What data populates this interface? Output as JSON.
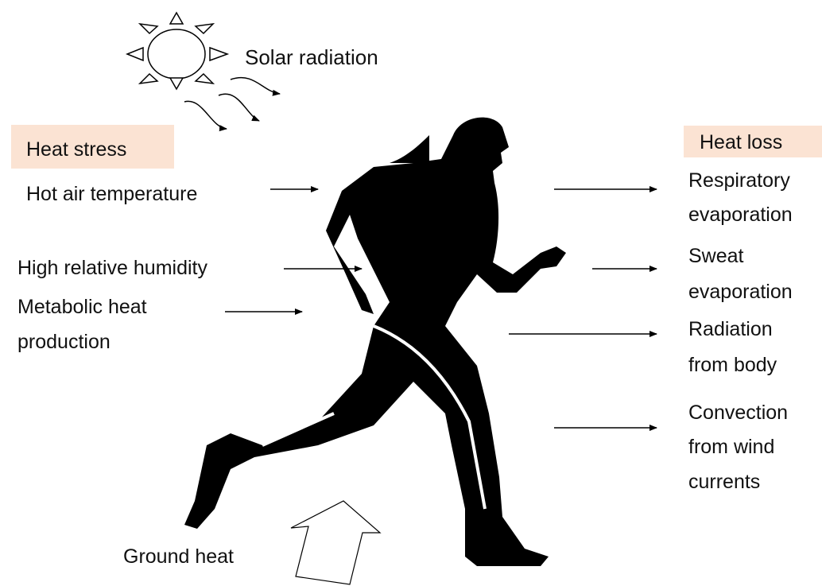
{
  "solar": "Solar radiation",
  "heat_stress": {
    "title": "Heat stress",
    "items": [
      {
        "lines": [
          "Hot air temperature"
        ]
      },
      {
        "lines": [
          "High relative humidity"
        ]
      },
      {
        "lines": [
          "Metabolic heat",
          "production"
        ]
      }
    ]
  },
  "heat_loss": {
    "title": "Heat loss",
    "items": [
      {
        "lines": [
          "Respiratory",
          "evaporation"
        ]
      },
      {
        "lines": [
          "Sweat",
          "evaporation"
        ]
      },
      {
        "lines": [
          "Radiation",
          "from body"
        ]
      },
      {
        "lines": [
          "Convection",
          "from wind",
          "currents"
        ]
      }
    ]
  },
  "ground": "Ground heat"
}
